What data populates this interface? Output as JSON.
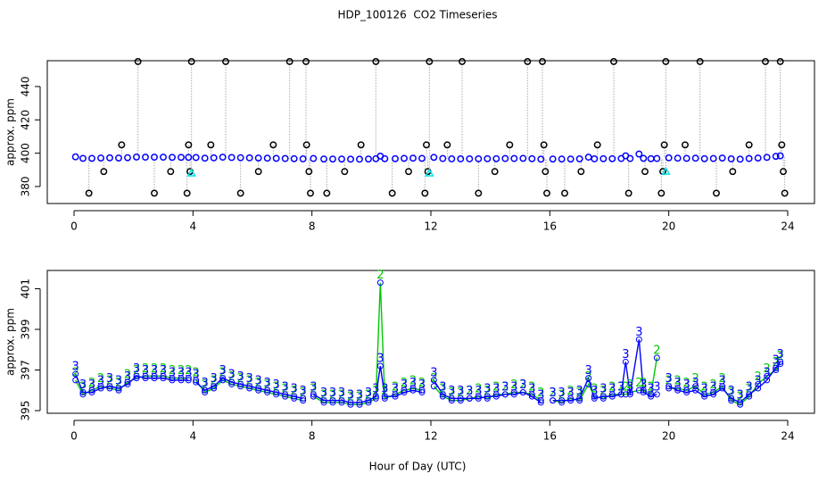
{
  "chart_data": [
    {
      "type": "scatter",
      "title": "HDP_100126  CO2 Timeseries",
      "ylabel": "approx. ppm",
      "xlim": [
        -0.9,
        24.9
      ],
      "xticks": [
        0,
        4,
        8,
        12,
        16,
        20,
        24
      ],
      "ylim": [
        369.8,
        455.5
      ],
      "yticks": [
        380,
        400,
        420,
        440
      ],
      "series": [
        {
          "color": "#0000ff",
          "marker": "circle",
          "x": [
            0.05,
            0.3,
            0.6,
            0.9,
            1.2,
            1.5,
            1.8,
            2.1,
            2.4,
            2.7,
            3.0,
            3.3,
            3.6,
            3.85,
            4.1,
            4.4,
            4.7,
            5.0,
            5.3,
            5.6,
            5.9,
            6.2,
            6.5,
            6.8,
            7.1,
            7.4,
            7.7,
            8.05,
            8.4,
            8.7,
            9.0,
            9.3,
            9.6,
            9.9,
            10.15,
            10.3,
            10.45,
            10.8,
            11.1,
            11.4,
            11.7,
            12.1,
            12.4,
            12.7,
            13.0,
            13.3,
            13.6,
            13.9,
            14.2,
            14.5,
            14.8,
            15.1,
            15.4,
            15.7,
            16.1,
            16.4,
            16.7,
            17.0,
            17.3,
            17.5,
            17.8,
            18.1,
            18.4,
            18.55,
            18.7,
            19.0,
            19.15,
            19.4,
            19.6,
            20.0,
            20.3,
            20.6,
            20.9,
            21.2,
            21.5,
            21.8,
            22.1,
            22.4,
            22.7,
            23.0,
            23.3,
            23.6,
            23.75
          ],
          "values": [
            397.8,
            396.9,
            396.9,
            397.1,
            397.2,
            397.1,
            397.3,
            397.7,
            397.6,
            397.6,
            397.6,
            397.5,
            397.5,
            397.5,
            397.4,
            397.0,
            397.2,
            397.6,
            397.4,
            397.3,
            397.2,
            397.1,
            397.0,
            396.9,
            396.8,
            396.7,
            396.6,
            396.8,
            396.5,
            396.5,
            396.5,
            396.4,
            396.4,
            396.5,
            396.7,
            398.2,
            396.7,
            396.7,
            396.9,
            397.0,
            396.9,
            397.5,
            396.8,
            396.6,
            396.6,
            396.6,
            396.6,
            396.7,
            396.7,
            396.8,
            396.8,
            396.9,
            396.7,
            396.4,
            396.5,
            396.5,
            396.5,
            396.6,
            397.6,
            396.6,
            396.7,
            396.7,
            396.8,
            398.4,
            396.8,
            399.5,
            396.9,
            396.7,
            396.8,
            397.2,
            397.0,
            396.9,
            397.0,
            396.7,
            396.8,
            397.1,
            396.6,
            396.4,
            396.8,
            397.1,
            397.5,
            398.1,
            398.4
          ]
        },
        {
          "color": "#000000",
          "marker": "circle",
          "x": [
            0.5,
            1.0,
            1.6,
            2.15,
            2.7,
            3.25,
            3.8,
            3.85,
            3.9,
            3.95,
            4.6,
            5.1,
            5.6,
            6.2,
            6.7,
            7.25,
            7.8,
            7.82,
            7.9,
            7.95,
            8.5,
            9.1,
            9.65,
            10.15,
            10.7,
            11.25,
            11.8,
            11.85,
            11.9,
            11.95,
            12.55,
            13.05,
            13.6,
            14.15,
            14.65,
            15.25,
            15.75,
            15.8,
            15.85,
            15.9,
            16.5,
            17.05,
            17.6,
            18.15,
            18.65,
            19.2,
            19.75,
            19.8,
            19.85,
            19.9,
            20.55,
            21.05,
            21.6,
            22.15,
            22.7,
            23.25,
            23.75,
            23.8,
            23.85,
            23.9
          ],
          "values": [
            376,
            389,
            405,
            455,
            376,
            389,
            376,
            405,
            389,
            455,
            405,
            455,
            376,
            389,
            405,
            455,
            455,
            405,
            389,
            376,
            376,
            389,
            405,
            455,
            376,
            389,
            376,
            405,
            389,
            455,
            405,
            455,
            376,
            389,
            405,
            455,
            455,
            405,
            389,
            376,
            376,
            389,
            405,
            455,
            376,
            389,
            376,
            389,
            405,
            455,
            405,
            455,
            376,
            389,
            405,
            455,
            455,
            405,
            389,
            376
          ]
        },
        {
          "color": "#00e5ee",
          "marker": "triangle",
          "x": [
            3.95,
            11.95,
            19.9
          ],
          "values": [
            388,
            388,
            389
          ]
        }
      ]
    },
    {
      "type": "line",
      "ylabel": "approx. ppm",
      "xlabel": "Hour of Day (UTC)",
      "xlim": [
        -0.9,
        24.9
      ],
      "xticks": [
        0,
        4,
        8,
        12,
        16,
        20,
        24
      ],
      "ylim": [
        394.87,
        401.9
      ],
      "yticks": [
        395,
        397,
        399,
        401
      ],
      "x": [
        0.05,
        0.3,
        0.6,
        0.9,
        1.2,
        1.5,
        1.8,
        2.1,
        2.4,
        2.7,
        3.0,
        3.3,
        3.6,
        3.85,
        3.95,
        4.1,
        4.4,
        4.7,
        5.0,
        5.3,
        5.6,
        5.9,
        6.2,
        6.5,
        6.8,
        7.1,
        7.4,
        7.7,
        7.9,
        8.05,
        8.4,
        8.7,
        9.0,
        9.3,
        9.6,
        9.9,
        10.15,
        10.3,
        10.45,
        10.8,
        11.1,
        11.4,
        11.7,
        11.95,
        12.1,
        12.4,
        12.7,
        13.0,
        13.3,
        13.6,
        13.9,
        14.2,
        14.5,
        14.8,
        15.1,
        15.4,
        15.7,
        15.85,
        16.1,
        16.4,
        16.7,
        17.0,
        17.3,
        17.5,
        17.8,
        18.1,
        18.4,
        18.55,
        18.7,
        19.0,
        19.15,
        19.4,
        19.6,
        19.85,
        20.0,
        20.3,
        20.6,
        20.9,
        21.2,
        21.5,
        21.8,
        22.1,
        22.4,
        22.7,
        23.0,
        23.3,
        23.6,
        23.75
      ],
      "series": [
        {
          "color": "#00c800",
          "pch": "2",
          "values": [
            396.5,
            395.8,
            396.0,
            396.2,
            396.1,
            396.0,
            396.4,
            396.6,
            396.7,
            396.7,
            396.7,
            396.6,
            396.6,
            396.6,
            null,
            396.5,
            395.9,
            396.1,
            396.5,
            396.3,
            396.2,
            396.1,
            396.0,
            395.9,
            395.8,
            395.7,
            395.6,
            395.5,
            null,
            395.7,
            395.4,
            395.4,
            395.4,
            395.3,
            395.3,
            395.4,
            395.6,
            401.3,
            395.6,
            395.8,
            396.0,
            396.1,
            396.0,
            null,
            396.2,
            395.7,
            395.5,
            395.5,
            395.6,
            395.7,
            395.6,
            395.8,
            395.8,
            395.9,
            395.9,
            395.8,
            395.5,
            null,
            395.5,
            395.4,
            395.6,
            395.5,
            396.3,
            395.7,
            395.6,
            395.8,
            395.8,
            395.8,
            395.9,
            396.0,
            396.0,
            395.8,
            397.6,
            null,
            396.1,
            396.1,
            396.0,
            396.2,
            395.8,
            395.9,
            396.2,
            395.5,
            395.3,
            395.7,
            396.3,
            396.7,
            397.0,
            397.3
          ]
        },
        {
          "color": "#0000ff",
          "pch": "3",
          "values": [
            396.8,
            395.9,
            395.9,
            396.1,
            396.2,
            396.1,
            396.3,
            396.7,
            396.6,
            396.6,
            396.6,
            396.5,
            396.5,
            396.5,
            null,
            396.4,
            396.0,
            396.2,
            396.6,
            396.4,
            396.3,
            396.2,
            396.1,
            396.0,
            395.9,
            395.8,
            395.7,
            395.6,
            null,
            395.8,
            395.5,
            395.5,
            395.5,
            395.4,
            395.4,
            395.5,
            395.7,
            397.2,
            395.7,
            395.7,
            395.9,
            396.0,
            395.9,
            null,
            396.5,
            395.8,
            395.6,
            395.6,
            395.6,
            395.6,
            395.7,
            395.7,
            395.8,
            395.8,
            395.9,
            395.7,
            395.4,
            null,
            395.5,
            395.5,
            395.5,
            395.6,
            396.6,
            395.6,
            395.7,
            395.7,
            395.8,
            397.4,
            395.8,
            398.5,
            395.9,
            395.7,
            395.8,
            null,
            396.2,
            396.0,
            395.9,
            396.0,
            395.7,
            395.8,
            396.1,
            395.6,
            395.4,
            395.8,
            396.1,
            396.5,
            397.1,
            397.4
          ]
        }
      ]
    }
  ]
}
